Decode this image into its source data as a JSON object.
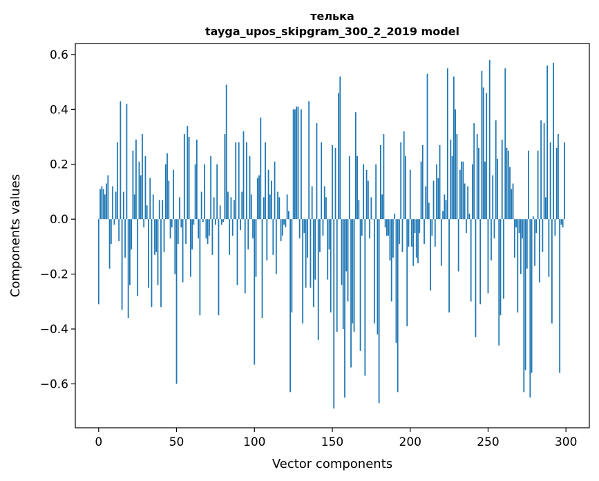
{
  "chart_data": {
    "type": "bar",
    "title_line1": "телька",
    "title_line2": "tayga_upos_skipgram_300_2_2019 model",
    "xlabel": "Vector components",
    "ylabel": "Components values",
    "xlim": [
      -15,
      315
    ],
    "ylim": [
      -0.76,
      0.64
    ],
    "xticks": [
      0,
      50,
      100,
      150,
      200,
      250,
      300
    ],
    "yticks": [
      -0.6,
      -0.4,
      -0.2,
      0.0,
      0.2,
      0.4,
      0.6
    ],
    "ytick_labels": [
      "−0.6",
      "−0.4",
      "−0.2",
      "0.0",
      "0.2",
      "0.4",
      "0.6"
    ],
    "bar_color": "#1f77b4",
    "bar_width": 0.8,
    "values": [
      -0.31,
      0.11,
      0.12,
      0.11,
      0.09,
      0.13,
      0.16,
      -0.18,
      -0.09,
      0.12,
      -0.02,
      0.1,
      0.28,
      -0.08,
      0.43,
      -0.33,
      0.1,
      -0.14,
      0.42,
      -0.36,
      -0.24,
      -0.11,
      0.25,
      0.09,
      0.29,
      -0.28,
      0.21,
      0.16,
      0.31,
      -0.03,
      0.23,
      0.05,
      -0.25,
      0.15,
      -0.32,
      0.09,
      -0.13,
      -0.12,
      -0.24,
      0.07,
      -0.32,
      0.07,
      -0.12,
      0.2,
      0.24,
      0.14,
      -0.07,
      -0.03,
      0.18,
      -0.2,
      -0.6,
      -0.09,
      0.08,
      -0.03,
      -0.23,
      0.31,
      -0.09,
      0.34,
      0.3,
      -0.21,
      -0.11,
      -0.02,
      0.2,
      0.29,
      -0.07,
      -0.35,
      0.1,
      -0.01,
      0.2,
      -0.07,
      -0.09,
      -0.06,
      0.23,
      -0.13,
      0.08,
      -0.02,
      0.2,
      -0.35,
      0.05,
      -0.02,
      -0.01,
      0.31,
      0.49,
      0.1,
      -0.13,
      0.08,
      -0.06,
      0.07,
      0.28,
      -0.24,
      0.28,
      -0.04,
      0.1,
      0.32,
      -0.27,
      0.28,
      -0.11,
      0.23,
      0.09,
      -0.07,
      -0.53,
      -0.21,
      0.15,
      0.16,
      0.37,
      -0.36,
      0.08,
      0.28,
      -0.15,
      0.18,
      0.09,
      0.14,
      -0.13,
      0.21,
      -0.2,
      0.1,
      0.08,
      -0.08,
      -0.06,
      -0.02,
      -0.03,
      0.09,
      0.03,
      -0.63,
      -0.34,
      0.4,
      0.4,
      0.41,
      0.41,
      -0.07,
      0.4,
      -0.38,
      -0.05,
      -0.25,
      -0.14,
      0.43,
      -0.25,
      0.12,
      -0.32,
      -0.22,
      0.35,
      -0.44,
      -0.12,
      0.28,
      -0.06,
      0.12,
      0.08,
      -0.22,
      -0.11,
      -0.34,
      0.27,
      -0.69,
      0.26,
      -0.41,
      0.46,
      0.52,
      -0.24,
      -0.4,
      -0.65,
      -0.19,
      -0.3,
      0.23,
      -0.54,
      -0.38,
      -0.41,
      0.39,
      0.23,
      0.07,
      -0.48,
      -0.06,
      0.2,
      -0.57,
      0.18,
      0.14,
      -0.07,
      0.08,
      0.0,
      -0.38,
      0.2,
      -0.42,
      -0.67,
      0.27,
      0.09,
      0.31,
      -0.03,
      -0.06,
      -0.06,
      -0.15,
      -0.3,
      -0.14,
      0.02,
      -0.45,
      -0.63,
      -0.09,
      0.28,
      -0.12,
      0.32,
      0.23,
      -0.39,
      -0.1,
      0.18,
      -0.1,
      -0.17,
      -0.05,
      -0.14,
      -0.16,
      -0.05,
      0.21,
      0.27,
      -0.09,
      0.12,
      0.53,
      0.06,
      -0.26,
      -0.06,
      0.14,
      -0.1,
      0.2,
      0.15,
      0.27,
      -0.17,
      0.03,
      0.09,
      0.07,
      0.55,
      -0.34,
      0.29,
      0.23,
      0.52,
      0.4,
      0.31,
      -0.19,
      0.18,
      0.21,
      0.21,
      0.13,
      -0.05,
      0.12,
      0.02,
      -0.3,
      0.2,
      0.35,
      -0.43,
      0.31,
      0.26,
      -0.31,
      0.54,
      0.48,
      0.21,
      0.46,
      -0.27,
      0.58,
      -0.15,
      0.16,
      -0.07,
      0.36,
      0.22,
      -0.46,
      -0.35,
      0.29,
      -0.29,
      0.55,
      0.26,
      0.25,
      0.19,
      0.11,
      0.13,
      -0.14,
      -0.03,
      -0.34,
      -0.05,
      -0.2,
      -0.07,
      -0.63,
      -0.55,
      -0.18,
      0.25,
      -0.65,
      -0.56,
      0.01,
      -0.17,
      -0.05,
      0.25,
      -0.23,
      0.36,
      -0.12,
      0.35,
      0.08,
      0.56,
      -0.21,
      0.28,
      -0.38,
      0.57,
      -0.06,
      0.26,
      0.31,
      -0.56,
      -0.02,
      -0.03,
      0.28
    ]
  }
}
